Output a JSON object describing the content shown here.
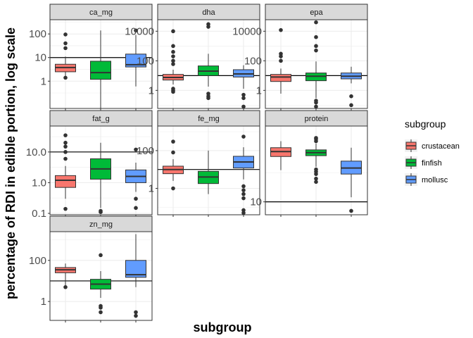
{
  "chart_data": {
    "type": "boxplot",
    "scale": "log10",
    "xlabel": "subgroup",
    "ylabel": "percentage of RDI in edible portion, log scale",
    "legend": {
      "title": "subgroup",
      "placement": "right",
      "entries": [
        "crustacean",
        "finfish",
        "mollusc"
      ]
    },
    "groups": [
      "crustacean",
      "finfish",
      "mollusc"
    ],
    "colors": {
      "crustacean": "#F8766D",
      "finfish": "#00BA38",
      "mollusc": "#619CFF"
    },
    "grid": true,
    "panels": [
      {
        "name": "ca_mg",
        "ylim": [
          0.07,
          400
        ],
        "ticks": [
          1,
          10,
          100
        ],
        "tick_labels": [
          "1",
          "10",
          "100"
        ],
        "hline": 10,
        "boxes": [
          {
            "group": "crustacean",
            "whisker_low": 1.5,
            "q1": 2.5,
            "median": 3.8,
            "q3": 5.2,
            "whisker_high": 11,
            "outliers": [
              1.4,
              25,
              40,
              95
            ]
          },
          {
            "group": "finfish",
            "whisker_low": 0.07,
            "q1": 1.2,
            "median": 2.3,
            "q3": 7.0,
            "whisker_high": 140,
            "outliers": []
          },
          {
            "group": "mollusc",
            "whisker_low": 0.6,
            "q1": 4.0,
            "median": 5.0,
            "q3": 14,
            "whisker_high": 90,
            "outliers": [
              140
            ]
          }
        ]
      },
      {
        "name": "dha",
        "ylim": [
          0.06,
          60000
        ],
        "ticks": [
          1,
          100,
          10000
        ],
        "tick_labels": [
          "1",
          "100",
          "10000"
        ],
        "hline": 10,
        "boxes": [
          {
            "group": "crustacean",
            "whisker_low": 2.5,
            "q1": 5,
            "median": 7.5,
            "q3": 12,
            "whisker_high": 25,
            "outliers": [
              0.8,
              1.0,
              1.3,
              60,
              100,
              200,
              400,
              1000,
              10000
            ]
          },
          {
            "group": "finfish",
            "whisker_low": 1.8,
            "q1": 10,
            "median": 20,
            "q3": 45,
            "whisker_high": 300,
            "outliers": [
              0.3,
              0.4,
              0.6,
              20000,
              30000
            ]
          },
          {
            "group": "mollusc",
            "whisker_low": 1.3,
            "q1": 8,
            "median": 13,
            "q3": 25,
            "whisker_high": 50,
            "outliers": [
              0.08,
              0.3,
              0.5
            ]
          }
        ]
      },
      {
        "name": "epa",
        "ylim": [
          0.06,
          60000
        ],
        "ticks": [
          1,
          100,
          10000
        ],
        "tick_labels": [
          "1",
          "100",
          "10000"
        ],
        "hline": 10,
        "boxes": [
          {
            "group": "crustacean",
            "whisker_low": 0.6,
            "q1": 4,
            "median": 8,
            "q3": 12,
            "whisker_high": 30,
            "outliers": [
              100,
              200,
              300,
              12000
            ]
          },
          {
            "group": "finfish",
            "whisker_low": 0.3,
            "q1": 4.5,
            "median": 9,
            "q3": 15,
            "whisker_high": 90,
            "outliers": [
              0.08,
              0.15,
              0.2,
              500,
              1000,
              4000,
              40000
            ]
          },
          {
            "group": "mollusc",
            "whisker_low": 3,
            "q1": 6,
            "median": 9,
            "q3": 15,
            "whisker_high": 40,
            "outliers": [
              0.1,
              0.4
            ]
          }
        ]
      },
      {
        "name": "fat_g",
        "ylim": [
          0.09,
          70
        ],
        "ticks": [
          0.1,
          1,
          10
        ],
        "tick_labels": [
          "0.1",
          "1.0",
          "10.0"
        ],
        "hline": 10,
        "boxes": [
          {
            "group": "crustacean",
            "whisker_low": 0.3,
            "q1": 0.7,
            "median": 1.2,
            "q3": 1.7,
            "whisker_high": 3.5,
            "outliers": [
              0.14,
              6,
              10,
              15,
              20,
              35
            ]
          },
          {
            "group": "finfish",
            "whisker_low": 0.15,
            "q1": 1.3,
            "median": 2.8,
            "q3": 6,
            "whisker_high": 20,
            "outliers": [
              0.11,
              0.12
            ]
          },
          {
            "group": "mollusc",
            "whisker_low": 0.5,
            "q1": 1.0,
            "median": 1.6,
            "q3": 2.6,
            "whisker_high": 4.5,
            "outliers": [
              0.15,
              0.3,
              12
            ]
          }
        ]
      },
      {
        "name": "fe_mg",
        "ylim": [
          0.04,
          2000
        ],
        "ticks": [
          1,
          100
        ],
        "tick_labels": [
          "1",
          "100"
        ],
        "hline": 10,
        "boxes": [
          {
            "group": "crustacean",
            "whisker_low": 2.5,
            "q1": 6,
            "median": 10,
            "q3": 15,
            "whisker_high": 35,
            "outliers": [
              1,
              80,
              300
            ]
          },
          {
            "group": "finfish",
            "whisker_low": 0.5,
            "q1": 1.8,
            "median": 4,
            "q3": 8,
            "whisker_high": 100,
            "outliers": []
          },
          {
            "group": "mollusc",
            "whisker_low": 3,
            "q1": 12,
            "median": 25,
            "q3": 50,
            "whisker_high": 150,
            "outliers": [
              0.05,
              0.07,
              0.3,
              0.5,
              0.8,
              1.3,
              550
            ]
          }
        ]
      },
      {
        "name": "protein",
        "ylim": [
          6,
          200
        ],
        "ticks": [
          10
        ],
        "tick_labels": [
          "10"
        ],
        "hline": 10,
        "boxes": [
          {
            "group": "crustacean",
            "whisker_low": 35,
            "q1": 60,
            "median": 73,
            "q3": 85,
            "whisker_high": 110,
            "outliers": []
          },
          {
            "group": "finfish",
            "whisker_low": 40,
            "q1": 62,
            "median": 70,
            "q3": 78,
            "whisker_high": 100,
            "outliers": [
              22,
              25,
              30,
              33,
              36,
              110,
              120,
              125
            ]
          },
          {
            "group": "mollusc",
            "whisker_low": 12,
            "q1": 30,
            "median": 38,
            "q3": 50,
            "whisker_high": 85,
            "outliers": [
              7
            ]
          }
        ]
      },
      {
        "name": "zn_mg",
        "ylim": [
          0.12,
          2500
        ],
        "ticks": [
          1,
          100
        ],
        "tick_labels": [
          "1",
          "100"
        ],
        "hline": 10,
        "boxes": [
          {
            "group": "crustacean",
            "whisker_low": 5,
            "q1": 25,
            "median": 35,
            "q3": 45,
            "whisker_high": 70,
            "outliers": [
              5
            ]
          },
          {
            "group": "finfish",
            "whisker_low": 1.5,
            "q1": 4,
            "median": 7,
            "q3": 12,
            "whisker_high": 30,
            "outliers": [
              0.3,
              0.5,
              0.6,
              180
            ]
          },
          {
            "group": "mollusc",
            "whisker_low": 5,
            "q1": 15,
            "median": 20,
            "q3": 100,
            "whisker_high": 1900,
            "outliers": [
              0.2,
              0.3
            ]
          }
        ]
      }
    ]
  }
}
